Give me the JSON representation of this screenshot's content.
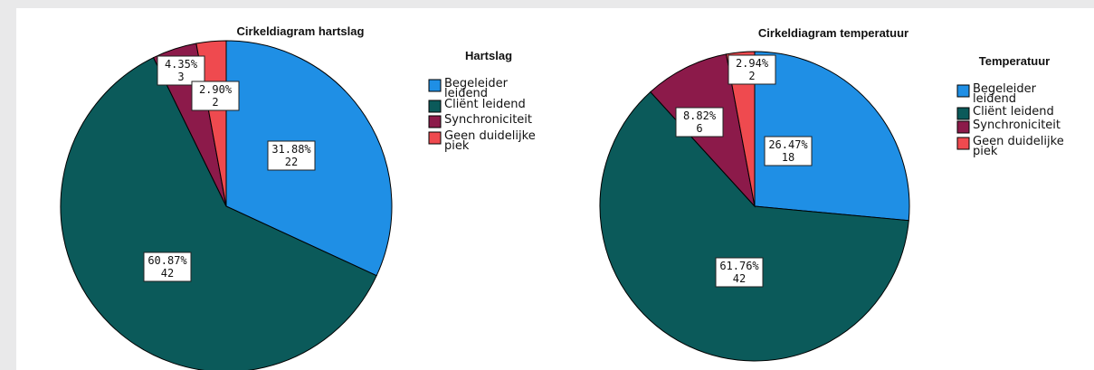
{
  "chart_data": [
    {
      "type": "pie",
      "title": "Cirkeldiagram hartslag",
      "legend_title": "Hartslag",
      "legend_placement": "right",
      "slices": [
        {
          "label_lines": [
            "Begeleider",
            "leidend"
          ],
          "name": "Begeleider leidend",
          "percent": "31.88%",
          "count": "22",
          "value": 22,
          "color": "#1f8fe5"
        },
        {
          "label_lines": [
            "Cliënt leidend"
          ],
          "name": "Cliënt leidend",
          "percent": "60.87%",
          "count": "42",
          "value": 42,
          "color": "#0b5a5a"
        },
        {
          "label_lines": [
            "Synchroniciteit"
          ],
          "name": "Synchroniciteit",
          "percent": "4.35%",
          "count": "3",
          "value": 3,
          "color": "#8c1a4a"
        },
        {
          "label_lines": [
            "Geen duidelijke",
            "piek"
          ],
          "name": "Geen duidelijke piek",
          "percent": "2.90%",
          "count": "2",
          "value": 2,
          "color": "#ef4a4f"
        }
      ]
    },
    {
      "type": "pie",
      "title": "Cirkeldiagram temperatuur",
      "legend_title": "Temperatuur",
      "legend_placement": "right",
      "slices": [
        {
          "label_lines": [
            "Begeleider",
            "leidend"
          ],
          "name": "Begeleider leidend",
          "percent": "26.47%",
          "count": "18",
          "value": 18,
          "color": "#1f8fe5"
        },
        {
          "label_lines": [
            "Cliënt leidend"
          ],
          "name": "Cliënt leidend",
          "percent": "61.76%",
          "count": "42",
          "value": 42,
          "color": "#0b5a5a"
        },
        {
          "label_lines": [
            "Synchroniciteit"
          ],
          "name": "Synchroniciteit",
          "percent": "8.82%",
          "count": "6",
          "value": 6,
          "color": "#8c1a4a"
        },
        {
          "label_lines": [
            "Geen duidelijke",
            "piek"
          ],
          "name": "Geen duidelijke piek",
          "percent": "2.94%",
          "count": "2",
          "value": 2,
          "color": "#ef4a4f"
        }
      ]
    }
  ]
}
